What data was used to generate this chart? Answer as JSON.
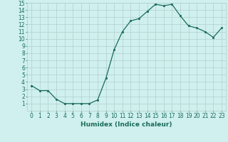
{
  "x": [
    0,
    1,
    2,
    3,
    4,
    5,
    6,
    7,
    8,
    9,
    10,
    11,
    12,
    13,
    14,
    15,
    16,
    17,
    18,
    19,
    20,
    21,
    22,
    23
  ],
  "y": [
    3.5,
    2.8,
    2.8,
    1.6,
    1.0,
    1.0,
    1.0,
    1.0,
    1.5,
    4.5,
    8.5,
    11.0,
    12.5,
    12.8,
    13.8,
    14.8,
    14.6,
    14.8,
    13.2,
    11.8,
    11.5,
    11.0,
    10.2,
    11.5
  ],
  "line_color": "#1a6b5a",
  "marker_color": "#1a6b5a",
  "bg_color": "#cff0ee",
  "grid_color": "#b0d0ce",
  "xlabel": "Humidex (Indice chaleur)",
  "xlim": [
    -0.5,
    23.5
  ],
  "ylim": [
    0,
    15
  ],
  "xticks": [
    0,
    1,
    2,
    3,
    4,
    5,
    6,
    7,
    8,
    9,
    10,
    11,
    12,
    13,
    14,
    15,
    16,
    17,
    18,
    19,
    20,
    21,
    22,
    23
  ],
  "yticks": [
    1,
    2,
    3,
    4,
    5,
    6,
    7,
    8,
    9,
    10,
    11,
    12,
    13,
    14,
    15
  ],
  "tick_fontsize": 5.5,
  "xlabel_fontsize": 6.5
}
